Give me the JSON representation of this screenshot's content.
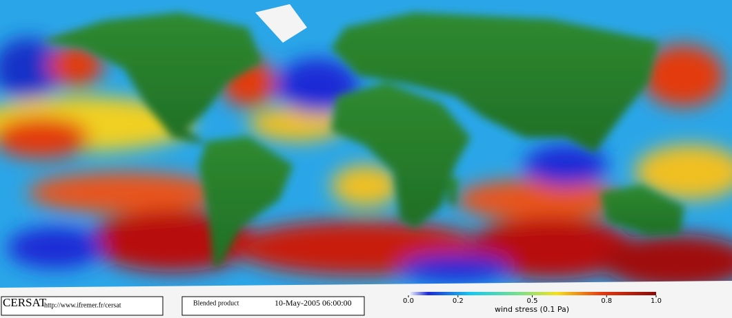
{
  "footer": {
    "logo": "CERSAT",
    "url": "http://www.ifremer.fr/cersat",
    "product": "Blended product",
    "timestamp": "10-May-2005 06:00:00"
  },
  "colorbar": {
    "label": "wind stress (0.1 Pa)",
    "lim": [
      0,
      1
    ],
    "ticks": [
      {
        "value": 0,
        "label": "0.0"
      },
      0.2,
      0.5,
      0.8,
      {
        "value": 1,
        "label": "1.0"
      }
    ]
  }
}
